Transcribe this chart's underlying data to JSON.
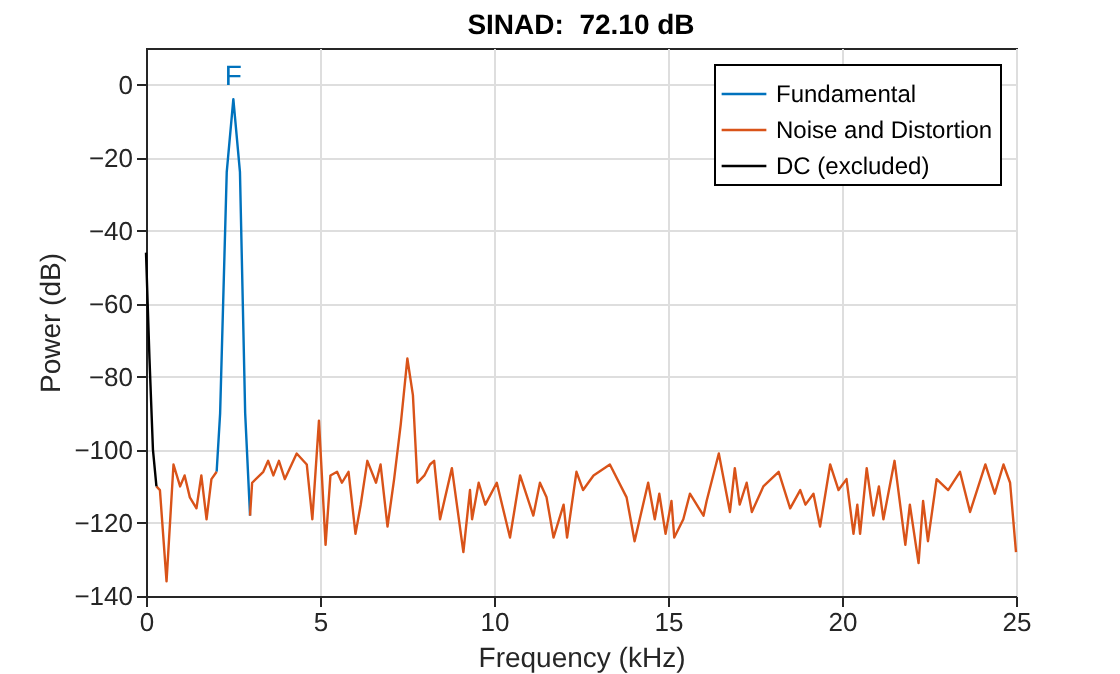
{
  "chart_data": {
    "type": "line",
    "title": "SINAD:  72.10 dB",
    "xlabel": "Frequency (kHz)",
    "ylabel": "Power (dB)",
    "xlim": [
      0,
      25
    ],
    "ylim": [
      -140,
      10
    ],
    "xticks": [
      0,
      5,
      10,
      15,
      20,
      25
    ],
    "yticks": [
      -140,
      -120,
      -100,
      -80,
      -60,
      -40,
      -20,
      0
    ],
    "grid": true,
    "legend": "top right",
    "annotations": [
      "F"
    ],
    "series": [
      {
        "name": "Fundamental",
        "color": "#0072bd",
        "x": [
          2.03,
          2.13,
          2.32,
          2.51,
          2.7,
          2.85,
          2.99
        ],
        "values": [
          -106,
          -90,
          -24,
          -4,
          -24,
          -90,
          -118
        ]
      },
      {
        "name": "Noise and Distortion",
        "color": "#d95319",
        "x": [
          0.3,
          0.4,
          0.59,
          0.79,
          0.98,
          1.11,
          1.26,
          1.45,
          1.59,
          1.74,
          1.88,
          2.03,
          null,
          2.99,
          3.05,
          3.37,
          3.51,
          3.66,
          3.82,
          3.99,
          4.33,
          4.62,
          4.78,
          4.97,
          5.16,
          5.3,
          5.49,
          5.63,
          5.82,
          6.02,
          6.17,
          6.36,
          6.61,
          6.74,
          6.94,
          7.13,
          7.32,
          7.51,
          7.67,
          7.8,
          8.0,
          8.16,
          8.28,
          8.45,
          8.79,
          9.12,
          9.31,
          9.37,
          9.56,
          9.75,
          10.08,
          10.46,
          10.75,
          11.13,
          11.32,
          11.51,
          11.71,
          12.0,
          12.1,
          12.37,
          12.56,
          12.86,
          13.33,
          13.81,
          14.04,
          14.43,
          14.62,
          14.75,
          14.93,
          15.1,
          15.18,
          15.44,
          15.63,
          16.02,
          16.11,
          16.46,
          16.78,
          16.92,
          17.06,
          17.26,
          17.41,
          17.74,
          18.18,
          18.51,
          18.8,
          18.95,
          19.18,
          19.37,
          19.66,
          19.9,
          20.13,
          20.33,
          20.44,
          20.52,
          20.71,
          20.9,
          21.06,
          21.19,
          21.51,
          21.82,
          21.95,
          22.2,
          22.33,
          22.47,
          22.72,
          23.05,
          23.39,
          23.68,
          24.12,
          24.39,
          24.64,
          24.83,
          25
        ],
        "values": [
          -110,
          -111,
          -136,
          -104,
          -110,
          -107,
          -113,
          -116,
          -107,
          -119,
          -108,
          -106,
          null,
          -118,
          -109,
          -106,
          -103,
          -107,
          -103,
          -108,
          -101,
          -104,
          -119,
          -92,
          -126,
          -107,
          -106,
          -109,
          -106,
          -123,
          -115,
          -103,
          -109,
          -104,
          -121,
          -108,
          -93,
          -75,
          -85,
          -109,
          -107,
          -104,
          -103,
          -119,
          -105,
          -128,
          -111,
          -119,
          -109,
          -115,
          -109,
          -124,
          -107,
          -118,
          -109,
          -113,
          -124,
          -115,
          -124,
          -106,
          -111,
          -107,
          -104,
          -113,
          -125,
          -109,
          -119,
          -112,
          -123,
          -114,
          -124,
          -119,
          -112,
          -118,
          -114,
          -101,
          -117,
          -105,
          -115,
          -109,
          -117,
          -110,
          -106,
          -116,
          -111,
          -115,
          -112,
          -121,
          -104,
          -111,
          -108,
          -123,
          -115,
          -123,
          -105,
          -118,
          -110,
          -119,
          -103,
          -126,
          -115,
          -131,
          -114,
          -125,
          -108,
          -111,
          -106,
          -117,
          -104,
          -112,
          -104,
          -109,
          -128
        ]
      },
      {
        "name": "DC (excluded)",
        "color": "#000000",
        "x": [
          0,
          0.1,
          0.2,
          0.3
        ],
        "values": [
          -46,
          -75,
          -100,
          -110
        ]
      }
    ]
  }
}
